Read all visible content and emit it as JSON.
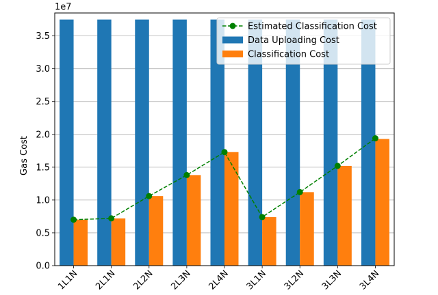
{
  "chart_data": {
    "type": "bar",
    "categories": [
      "1L1N",
      "2L1N",
      "2L2N",
      "2L3N",
      "2L4N",
      "3L1N",
      "3L2N",
      "3L3N",
      "3L4N"
    ],
    "series": [
      {
        "name": "Data Uploading Cost",
        "kind": "bar",
        "color": "#1f77b4",
        "values": [
          3.75,
          3.75,
          3.75,
          3.75,
          3.75,
          3.75,
          3.75,
          3.75,
          3.75
        ]
      },
      {
        "name": "Classification Cost",
        "kind": "bar",
        "color": "#ff7f0e",
        "values": [
          0.7,
          0.72,
          1.06,
          1.38,
          1.73,
          0.74,
          1.12,
          1.52,
          1.93
        ]
      },
      {
        "name": "Estimated Classification Cost",
        "kind": "line",
        "color": "#008000",
        "line_style": "dashed",
        "marker": "circle",
        "values": [
          0.7,
          0.72,
          1.06,
          1.38,
          1.73,
          0.74,
          1.12,
          1.52,
          1.94
        ]
      }
    ],
    "title": "",
    "xlabel": "",
    "ylabel": "Gas Cost",
    "y_multiplier": "1e7",
    "ylim": [
      0,
      3.85
    ],
    "yticks": [
      "0.0",
      "0.5",
      "1.0",
      "1.5",
      "2.0",
      "2.5",
      "3.0",
      "3.5"
    ],
    "grid": "horizontal",
    "legend_position": "top-right"
  }
}
